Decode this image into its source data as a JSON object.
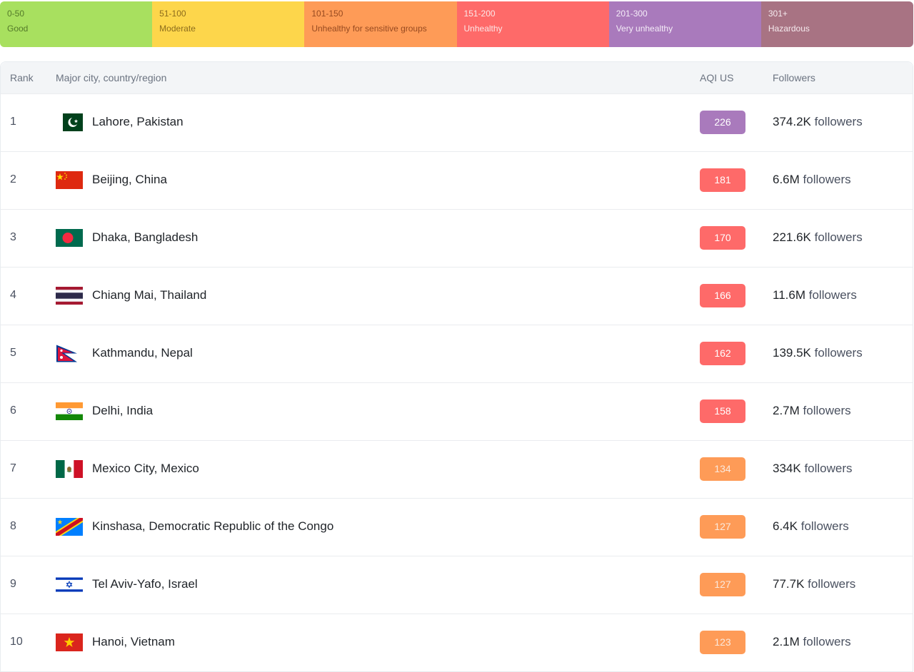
{
  "legend": [
    {
      "range": "0-50",
      "label": "Good",
      "color": "#a8e05f"
    },
    {
      "range": "51-100",
      "label": "Moderate",
      "color": "#fdd64b"
    },
    {
      "range": "101-150",
      "label": "Unhealthy for sensitive groups",
      "color": "#fe9b57"
    },
    {
      "range": "151-200",
      "label": "Unhealthy",
      "color": "#fe6a69"
    },
    {
      "range": "201-300",
      "label": "Very unhealthy",
      "color": "#a97abc"
    },
    {
      "range": "301+",
      "label": "Hazardous",
      "color": "#a87383"
    }
  ],
  "table": {
    "headers": {
      "rank": "Rank",
      "city": "Major city, country/region",
      "aqi": "AQI US",
      "followers": "Followers"
    },
    "followers_suffix": "followers",
    "rows": [
      {
        "rank": "1",
        "city": "Lahore, Pakistan",
        "flag": "pakistan-flag-icon",
        "aqi": "226",
        "level": "purple",
        "followers": "374.2K"
      },
      {
        "rank": "2",
        "city": "Beijing, China",
        "flag": "china-flag-icon",
        "aqi": "181",
        "level": "red",
        "followers": "6.6M"
      },
      {
        "rank": "3",
        "city": "Dhaka, Bangladesh",
        "flag": "bangladesh-flag-icon",
        "aqi": "170",
        "level": "red",
        "followers": "221.6K"
      },
      {
        "rank": "4",
        "city": "Chiang Mai, Thailand",
        "flag": "thailand-flag-icon",
        "aqi": "166",
        "level": "red",
        "followers": "11.6M"
      },
      {
        "rank": "5",
        "city": "Kathmandu, Nepal",
        "flag": "nepal-flag-icon",
        "aqi": "162",
        "level": "red",
        "followers": "139.5K"
      },
      {
        "rank": "6",
        "city": "Delhi, India",
        "flag": "india-flag-icon",
        "aqi": "158",
        "level": "red",
        "followers": "2.7M"
      },
      {
        "rank": "7",
        "city": "Mexico City, Mexico",
        "flag": "mexico-flag-icon",
        "aqi": "134",
        "level": "orange",
        "followers": "334K"
      },
      {
        "rank": "8",
        "city": "Kinshasa, Democratic Republic of the Congo",
        "flag": "drc-flag-icon",
        "aqi": "127",
        "level": "orange",
        "followers": "6.4K"
      },
      {
        "rank": "9",
        "city": "Tel Aviv-Yafo, Israel",
        "flag": "israel-flag-icon",
        "aqi": "127",
        "level": "orange",
        "followers": "77.7K"
      },
      {
        "rank": "10",
        "city": "Hanoi, Vietnam",
        "flag": "vietnam-flag-icon",
        "aqi": "123",
        "level": "orange",
        "followers": "2.1M"
      }
    ]
  }
}
